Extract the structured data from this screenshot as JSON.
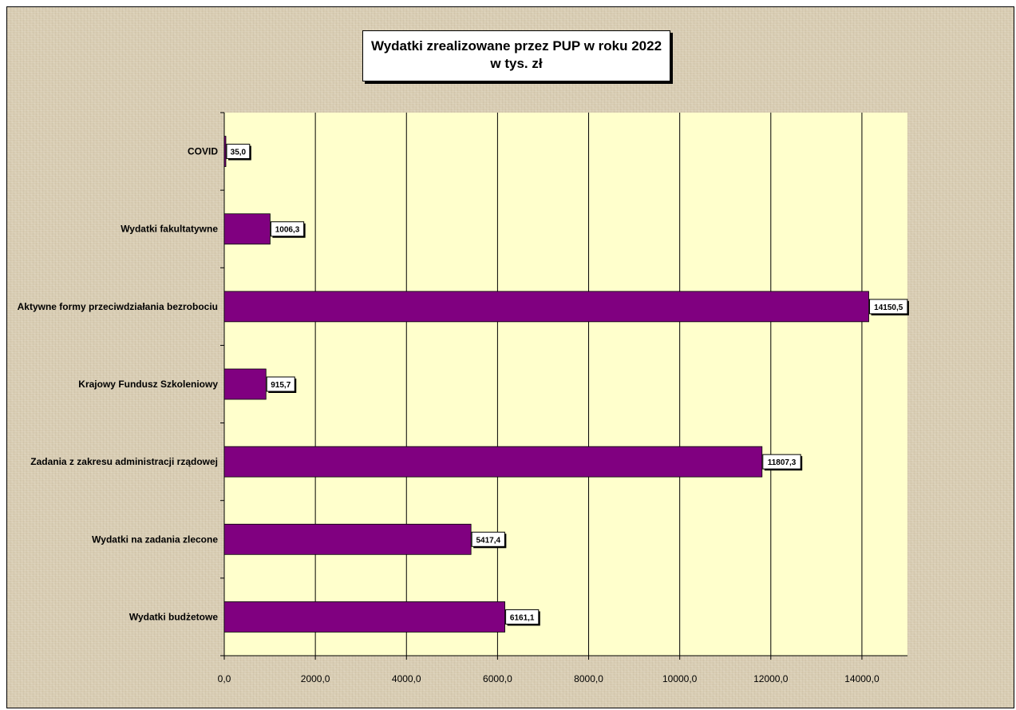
{
  "chart_data": {
    "type": "bar",
    "orientation": "horizontal",
    "title": "Wydatki zrealizowane  przez PUP w roku 2022",
    "subtitle": "w tys. zł",
    "categories": [
      "COVID",
      "Wydatki fakultatywne",
      "Aktywne formy przeciwdziałania bezrobociu",
      "Krajowy Fundusz Szkoleniowy",
      "Zadania z zakresu administracji rządowej",
      "Wydatki na zadania zlecone",
      "Wydatki budżetowe"
    ],
    "values": [
      35.0,
      1006.3,
      14150.5,
      915.7,
      11807.3,
      5417.4,
      6161.1
    ],
    "value_labels": [
      "35,0",
      "1006,3",
      "14150,5",
      "915,7",
      "11807,3",
      "5417,4",
      "6161,1"
    ],
    "xlim": [
      0,
      15000
    ],
    "x_ticks": [
      0,
      2000,
      4000,
      6000,
      8000,
      10000,
      12000,
      14000
    ],
    "x_tick_labels": [
      "0,0",
      "2000,0",
      "4000,0",
      "6000,0",
      "8000,0",
      "10000,0",
      "12000,0",
      "14000,0"
    ],
    "grid": "vertical",
    "legend": "none",
    "colors": {
      "bar": "#800080",
      "plot_background": "#ffffcc",
      "chart_background": "#d8ccb2"
    }
  }
}
